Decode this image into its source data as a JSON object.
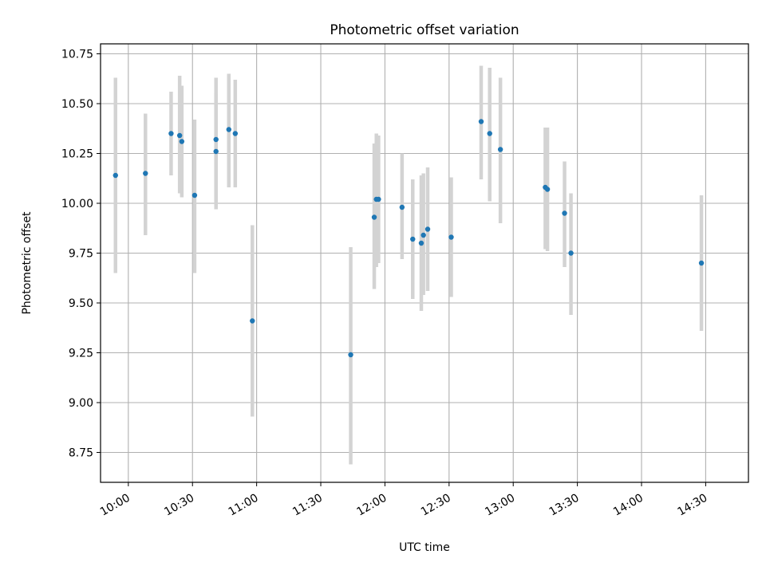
{
  "colors": {
    "point": "#1f77b4",
    "errorbar": "#d3d3d3",
    "grid": "#b0b0b0",
    "axis": "#000000"
  },
  "chart_data": {
    "type": "scatter",
    "title": "Photometric offset variation",
    "xlabel": "UTC time",
    "ylabel": "Photometric offset",
    "x_unit": "UTC time (HH:MM)",
    "xlim": [
      "09:47",
      "14:50"
    ],
    "ylim": [
      8.6,
      10.8
    ],
    "grid": true,
    "legend": "none",
    "xticks": [
      {
        "value": "10:00",
        "label": "10:00"
      },
      {
        "value": "10:30",
        "label": "10:30"
      },
      {
        "value": "11:00",
        "label": "11:00"
      },
      {
        "value": "11:30",
        "label": "11:30"
      },
      {
        "value": "12:00",
        "label": "12:00"
      },
      {
        "value": "12:30",
        "label": "12:30"
      },
      {
        "value": "13:00",
        "label": "13:00"
      },
      {
        "value": "13:30",
        "label": "13:30"
      },
      {
        "value": "14:00",
        "label": "14:00"
      },
      {
        "value": "14:30",
        "label": "14:30"
      }
    ],
    "yticks": [
      {
        "value": 8.75,
        "label": "8.75"
      },
      {
        "value": 9.0,
        "label": "9.00"
      },
      {
        "value": 9.25,
        "label": "9.25"
      },
      {
        "value": 9.5,
        "label": "9.50"
      },
      {
        "value": 9.75,
        "label": "9.75"
      },
      {
        "value": 10.0,
        "label": "10.00"
      },
      {
        "value": 10.25,
        "label": "10.25"
      },
      {
        "value": 10.5,
        "label": "10.50"
      },
      {
        "value": 10.75,
        "label": "10.75"
      }
    ],
    "points": [
      {
        "x": "09:54",
        "y": 10.14,
        "ylow": 9.65,
        "yhigh": 10.63
      },
      {
        "x": "10:08",
        "y": 10.15,
        "ylow": 9.84,
        "yhigh": 10.45
      },
      {
        "x": "10:20",
        "y": 10.35,
        "ylow": 10.14,
        "yhigh": 10.56
      },
      {
        "x": "10:24",
        "y": 10.34,
        "ylow": 10.05,
        "yhigh": 10.64
      },
      {
        "x": "10:25",
        "y": 10.31,
        "ylow": 10.03,
        "yhigh": 10.59
      },
      {
        "x": "10:31",
        "y": 10.04,
        "ylow": 9.65,
        "yhigh": 10.42
      },
      {
        "x": "10:41",
        "y": 10.32,
        "ylow": 10.01,
        "yhigh": 10.63
      },
      {
        "x": "10:41",
        "y": 10.26,
        "ylow": 9.97,
        "yhigh": 10.55
      },
      {
        "x": "10:47",
        "y": 10.37,
        "ylow": 10.08,
        "yhigh": 10.65
      },
      {
        "x": "10:50",
        "y": 10.35,
        "ylow": 10.08,
        "yhigh": 10.62
      },
      {
        "x": "10:58",
        "y": 9.41,
        "ylow": 8.93,
        "yhigh": 9.89
      },
      {
        "x": "11:44",
        "y": 9.24,
        "ylow": 8.69,
        "yhigh": 9.78
      },
      {
        "x": "11:55",
        "y": 9.93,
        "ylow": 9.57,
        "yhigh": 10.3
      },
      {
        "x": "11:56",
        "y": 10.02,
        "ylow": 9.68,
        "yhigh": 10.35
      },
      {
        "x": "11:57",
        "y": 10.02,
        "ylow": 9.7,
        "yhigh": 10.34
      },
      {
        "x": "12:08",
        "y": 9.98,
        "ylow": 9.72,
        "yhigh": 10.25
      },
      {
        "x": "12:13",
        "y": 9.82,
        "ylow": 9.52,
        "yhigh": 10.12
      },
      {
        "x": "12:17",
        "y": 9.8,
        "ylow": 9.46,
        "yhigh": 10.14
      },
      {
        "x": "12:18",
        "y": 9.84,
        "ylow": 9.54,
        "yhigh": 10.15
      },
      {
        "x": "12:20",
        "y": 9.87,
        "ylow": 9.56,
        "yhigh": 10.18
      },
      {
        "x": "12:31",
        "y": 9.83,
        "ylow": 9.53,
        "yhigh": 10.13
      },
      {
        "x": "12:45",
        "y": 10.41,
        "ylow": 10.12,
        "yhigh": 10.69
      },
      {
        "x": "12:49",
        "y": 10.35,
        "ylow": 10.01,
        "yhigh": 10.68
      },
      {
        "x": "12:54",
        "y": 10.27,
        "ylow": 9.9,
        "yhigh": 10.63
      },
      {
        "x": "13:15",
        "y": 10.08,
        "ylow": 9.77,
        "yhigh": 10.38
      },
      {
        "x": "13:16",
        "y": 10.07,
        "ylow": 9.76,
        "yhigh": 10.38
      },
      {
        "x": "13:24",
        "y": 9.95,
        "ylow": 9.68,
        "yhigh": 10.21
      },
      {
        "x": "13:27",
        "y": 9.75,
        "ylow": 9.44,
        "yhigh": 10.05
      },
      {
        "x": "14:28",
        "y": 9.7,
        "ylow": 9.36,
        "yhigh": 10.04
      }
    ]
  }
}
